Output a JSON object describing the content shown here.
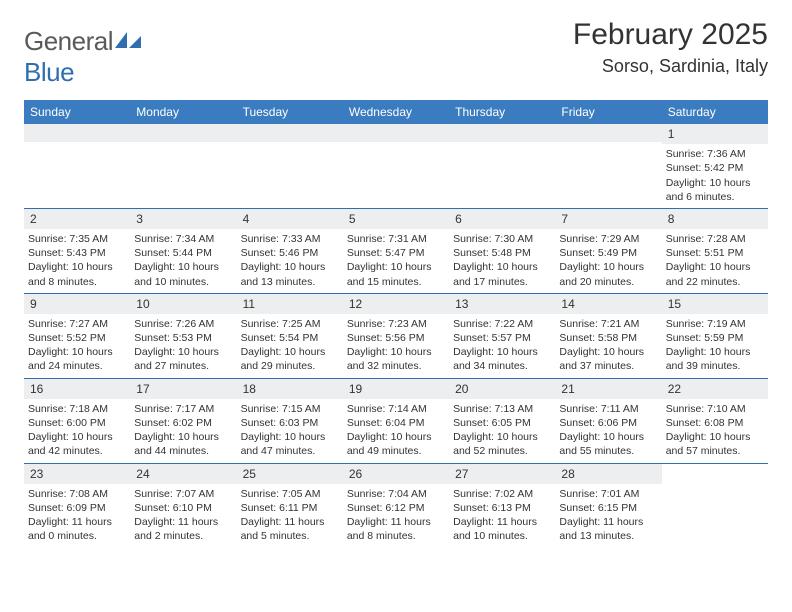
{
  "logo": {
    "text1": "General",
    "text2": "Blue"
  },
  "title": "February 2025",
  "location": "Sorso, Sardinia, Italy",
  "colors": {
    "header_bg": "#3b7bbf",
    "row_border": "#2f6fb0",
    "daynum_bg": "#eceeef",
    "text": "#333333",
    "logo_gray": "#5a5a5a",
    "logo_blue": "#2f6fb0"
  },
  "day_headers": [
    "Sunday",
    "Monday",
    "Tuesday",
    "Wednesday",
    "Thursday",
    "Friday",
    "Saturday"
  ],
  "weeks": [
    [
      {
        "empty": true
      },
      {
        "empty": true
      },
      {
        "empty": true
      },
      {
        "empty": true
      },
      {
        "empty": true
      },
      {
        "empty": true
      },
      {
        "num": "1",
        "sunrise": "Sunrise: 7:36 AM",
        "sunset": "Sunset: 5:42 PM",
        "daylight1": "Daylight: 10 hours",
        "daylight2": "and 6 minutes."
      }
    ],
    [
      {
        "num": "2",
        "sunrise": "Sunrise: 7:35 AM",
        "sunset": "Sunset: 5:43 PM",
        "daylight1": "Daylight: 10 hours",
        "daylight2": "and 8 minutes."
      },
      {
        "num": "3",
        "sunrise": "Sunrise: 7:34 AM",
        "sunset": "Sunset: 5:44 PM",
        "daylight1": "Daylight: 10 hours",
        "daylight2": "and 10 minutes."
      },
      {
        "num": "4",
        "sunrise": "Sunrise: 7:33 AM",
        "sunset": "Sunset: 5:46 PM",
        "daylight1": "Daylight: 10 hours",
        "daylight2": "and 13 minutes."
      },
      {
        "num": "5",
        "sunrise": "Sunrise: 7:31 AM",
        "sunset": "Sunset: 5:47 PM",
        "daylight1": "Daylight: 10 hours",
        "daylight2": "and 15 minutes."
      },
      {
        "num": "6",
        "sunrise": "Sunrise: 7:30 AM",
        "sunset": "Sunset: 5:48 PM",
        "daylight1": "Daylight: 10 hours",
        "daylight2": "and 17 minutes."
      },
      {
        "num": "7",
        "sunrise": "Sunrise: 7:29 AM",
        "sunset": "Sunset: 5:49 PM",
        "daylight1": "Daylight: 10 hours",
        "daylight2": "and 20 minutes."
      },
      {
        "num": "8",
        "sunrise": "Sunrise: 7:28 AM",
        "sunset": "Sunset: 5:51 PM",
        "daylight1": "Daylight: 10 hours",
        "daylight2": "and 22 minutes."
      }
    ],
    [
      {
        "num": "9",
        "sunrise": "Sunrise: 7:27 AM",
        "sunset": "Sunset: 5:52 PM",
        "daylight1": "Daylight: 10 hours",
        "daylight2": "and 24 minutes."
      },
      {
        "num": "10",
        "sunrise": "Sunrise: 7:26 AM",
        "sunset": "Sunset: 5:53 PM",
        "daylight1": "Daylight: 10 hours",
        "daylight2": "and 27 minutes."
      },
      {
        "num": "11",
        "sunrise": "Sunrise: 7:25 AM",
        "sunset": "Sunset: 5:54 PM",
        "daylight1": "Daylight: 10 hours",
        "daylight2": "and 29 minutes."
      },
      {
        "num": "12",
        "sunrise": "Sunrise: 7:23 AM",
        "sunset": "Sunset: 5:56 PM",
        "daylight1": "Daylight: 10 hours",
        "daylight2": "and 32 minutes."
      },
      {
        "num": "13",
        "sunrise": "Sunrise: 7:22 AM",
        "sunset": "Sunset: 5:57 PM",
        "daylight1": "Daylight: 10 hours",
        "daylight2": "and 34 minutes."
      },
      {
        "num": "14",
        "sunrise": "Sunrise: 7:21 AM",
        "sunset": "Sunset: 5:58 PM",
        "daylight1": "Daylight: 10 hours",
        "daylight2": "and 37 minutes."
      },
      {
        "num": "15",
        "sunrise": "Sunrise: 7:19 AM",
        "sunset": "Sunset: 5:59 PM",
        "daylight1": "Daylight: 10 hours",
        "daylight2": "and 39 minutes."
      }
    ],
    [
      {
        "num": "16",
        "sunrise": "Sunrise: 7:18 AM",
        "sunset": "Sunset: 6:00 PM",
        "daylight1": "Daylight: 10 hours",
        "daylight2": "and 42 minutes."
      },
      {
        "num": "17",
        "sunrise": "Sunrise: 7:17 AM",
        "sunset": "Sunset: 6:02 PM",
        "daylight1": "Daylight: 10 hours",
        "daylight2": "and 44 minutes."
      },
      {
        "num": "18",
        "sunrise": "Sunrise: 7:15 AM",
        "sunset": "Sunset: 6:03 PM",
        "daylight1": "Daylight: 10 hours",
        "daylight2": "and 47 minutes."
      },
      {
        "num": "19",
        "sunrise": "Sunrise: 7:14 AM",
        "sunset": "Sunset: 6:04 PM",
        "daylight1": "Daylight: 10 hours",
        "daylight2": "and 49 minutes."
      },
      {
        "num": "20",
        "sunrise": "Sunrise: 7:13 AM",
        "sunset": "Sunset: 6:05 PM",
        "daylight1": "Daylight: 10 hours",
        "daylight2": "and 52 minutes."
      },
      {
        "num": "21",
        "sunrise": "Sunrise: 7:11 AM",
        "sunset": "Sunset: 6:06 PM",
        "daylight1": "Daylight: 10 hours",
        "daylight2": "and 55 minutes."
      },
      {
        "num": "22",
        "sunrise": "Sunrise: 7:10 AM",
        "sunset": "Sunset: 6:08 PM",
        "daylight1": "Daylight: 10 hours",
        "daylight2": "and 57 minutes."
      }
    ],
    [
      {
        "num": "23",
        "sunrise": "Sunrise: 7:08 AM",
        "sunset": "Sunset: 6:09 PM",
        "daylight1": "Daylight: 11 hours",
        "daylight2": "and 0 minutes."
      },
      {
        "num": "24",
        "sunrise": "Sunrise: 7:07 AM",
        "sunset": "Sunset: 6:10 PM",
        "daylight1": "Daylight: 11 hours",
        "daylight2": "and 2 minutes."
      },
      {
        "num": "25",
        "sunrise": "Sunrise: 7:05 AM",
        "sunset": "Sunset: 6:11 PM",
        "daylight1": "Daylight: 11 hours",
        "daylight2": "and 5 minutes."
      },
      {
        "num": "26",
        "sunrise": "Sunrise: 7:04 AM",
        "sunset": "Sunset: 6:12 PM",
        "daylight1": "Daylight: 11 hours",
        "daylight2": "and 8 minutes."
      },
      {
        "num": "27",
        "sunrise": "Sunrise: 7:02 AM",
        "sunset": "Sunset: 6:13 PM",
        "daylight1": "Daylight: 11 hours",
        "daylight2": "and 10 minutes."
      },
      {
        "num": "28",
        "sunrise": "Sunrise: 7:01 AM",
        "sunset": "Sunset: 6:15 PM",
        "daylight1": "Daylight: 11 hours",
        "daylight2": "and 13 minutes."
      },
      {
        "empty": true,
        "trailing": true
      }
    ]
  ]
}
